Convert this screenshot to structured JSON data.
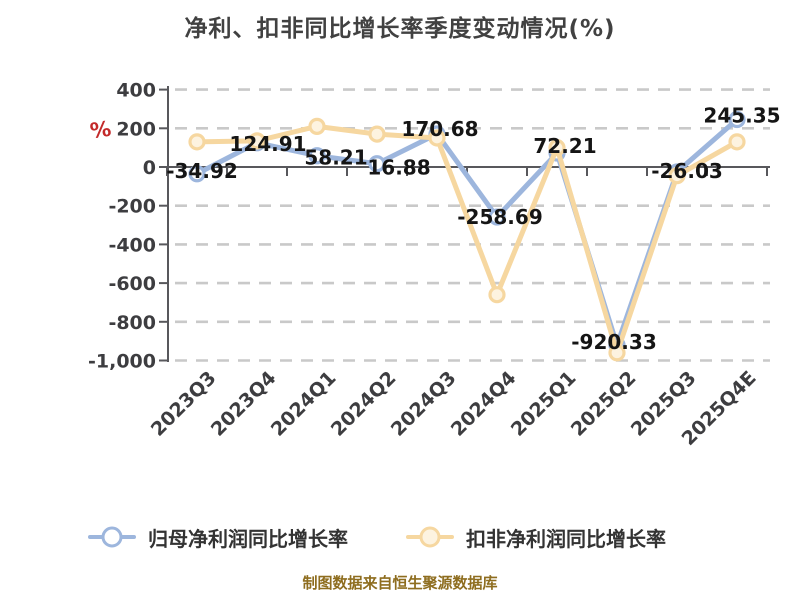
{
  "chart_data": {
    "type": "line",
    "title": "净利、扣非同比增长率季度变动情况(%)",
    "y_unit": "%",
    "footer": "制图数据来自恒生聚源数据库",
    "categories": [
      "2023Q3",
      "2023Q4",
      "2024Q1",
      "2024Q2",
      "2024Q3",
      "2024Q4",
      "2025Q1",
      "2025Q2",
      "2025Q3",
      "2025Q4E"
    ],
    "ylim": [
      -1000,
      400
    ],
    "grid": "dashed-horizontal",
    "legend_position": "bottom",
    "y_ticks": [
      {
        "value": 400,
        "label": "400"
      },
      {
        "value": 200,
        "label": "200"
      },
      {
        "value": 0,
        "label": "0"
      },
      {
        "value": -200,
        "label": "-200"
      },
      {
        "value": -400,
        "label": "-400"
      },
      {
        "value": -600,
        "label": "-600"
      },
      {
        "value": -800,
        "label": "-800"
      },
      {
        "value": -1000,
        "label": "-1,000"
      }
    ],
    "series": [
      {
        "name": "归母净利润同比增长率",
        "color": "#9db6dd",
        "marker_fill": "#ffffff",
        "values": [
          -34.92,
          124.91,
          58.21,
          16.88,
          170.68,
          -258.69,
          72.21,
          -920.33,
          -26.03,
          245.35
        ],
        "point_labels": [
          "-34.92",
          "124.91",
          "58.21",
          "16.88",
          "170.68",
          "-258.69",
          "72.21",
          "-920.33",
          "-26.03",
          "245.35"
        ],
        "label_offsets": [
          [
            5,
            -3
          ],
          [
            11,
            1
          ],
          [
            19,
            2
          ],
          [
            22,
            4
          ],
          [
            3,
            -5
          ],
          [
            3,
            0
          ],
          [
            8,
            -7
          ],
          [
            -3,
            -3
          ],
          [
            10,
            -1
          ],
          [
            5,
            -4
          ]
        ]
      },
      {
        "name": "扣非净利润同比增长率",
        "color": "#f6d7a0",
        "marker_fill": "#fdf3e0",
        "values": [
          130,
          135,
          210,
          170,
          150,
          -660,
          100,
          -960,
          -45,
          130
        ],
        "point_labels": [],
        "label_offsets": []
      }
    ],
    "style": {
      "axis_color": "#58585c",
      "grid_color": "#c9c9c9",
      "tick_label_color": "#3d3d40",
      "data_label_color": "#151515",
      "title_color": "#414141",
      "footer_color": "#8e6d1f",
      "unit_color": "#c32a2a",
      "background": "#ffffff"
    }
  }
}
